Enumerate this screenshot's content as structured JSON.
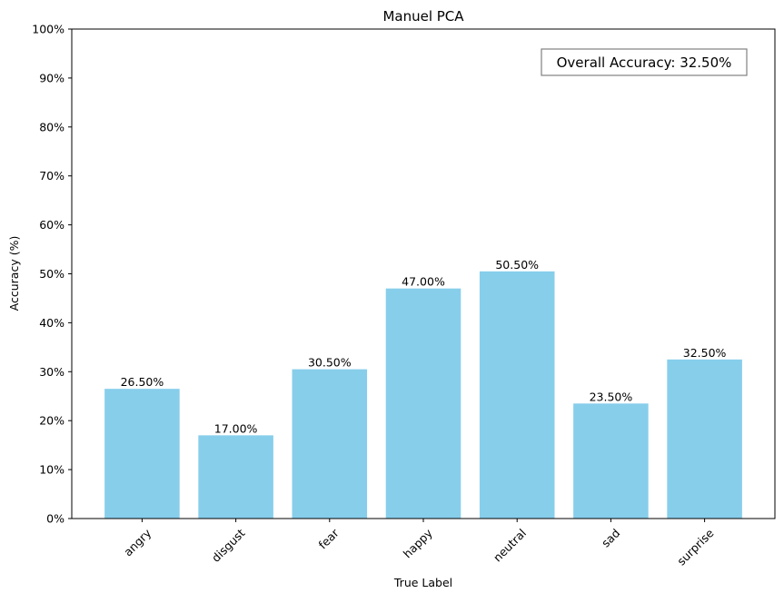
{
  "chart_data": {
    "type": "bar",
    "title": "Manuel PCA",
    "xlabel": "True Label",
    "ylabel": "Accuracy (%)",
    "categories": [
      "angry",
      "disgust",
      "fear",
      "happy",
      "neutral",
      "sad",
      "surprise"
    ],
    "values": [
      26.5,
      17.0,
      30.5,
      47.0,
      50.5,
      23.5,
      32.5
    ],
    "value_labels": [
      "26.50%",
      "17.00%",
      "30.50%",
      "47.00%",
      "50.50%",
      "23.50%",
      "32.50%"
    ],
    "ylim": [
      0,
      100
    ],
    "yticks": [
      0,
      10,
      20,
      30,
      40,
      50,
      60,
      70,
      80,
      90,
      100
    ],
    "ytick_labels": [
      "0%",
      "10%",
      "20%",
      "30%",
      "40%",
      "50%",
      "60%",
      "70%",
      "80%",
      "90%",
      "100%"
    ],
    "x_tick_rotation_deg": 45,
    "grid": false,
    "bar_color": "#87ceeb",
    "annotation": {
      "text": "Overall Accuracy: 32.50%",
      "placement": "top-right"
    }
  }
}
